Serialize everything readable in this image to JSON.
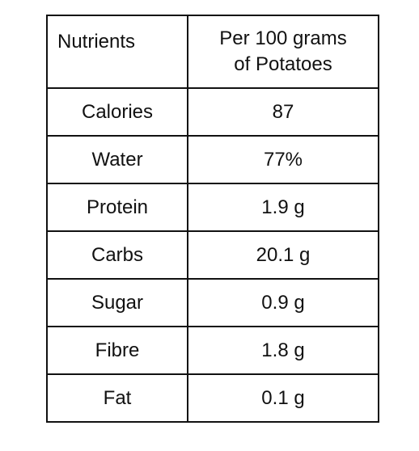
{
  "table": {
    "header": {
      "col1": "Nutrients",
      "col2_line1": "Per 100 grams",
      "col2_line2": "of Potatoes"
    },
    "rows": [
      {
        "nutrient": "Calories",
        "value": "87"
      },
      {
        "nutrient": "Water",
        "value": "77%"
      },
      {
        "nutrient": "Protein",
        "value": "1.9 g"
      },
      {
        "nutrient": "Carbs",
        "value": "20.1 g"
      },
      {
        "nutrient": "Sugar",
        "value": "0.9 g"
      },
      {
        "nutrient": "Fibre",
        "value": "1.8 g"
      },
      {
        "nutrient": "Fat",
        "value": "0.1 g"
      }
    ]
  }
}
